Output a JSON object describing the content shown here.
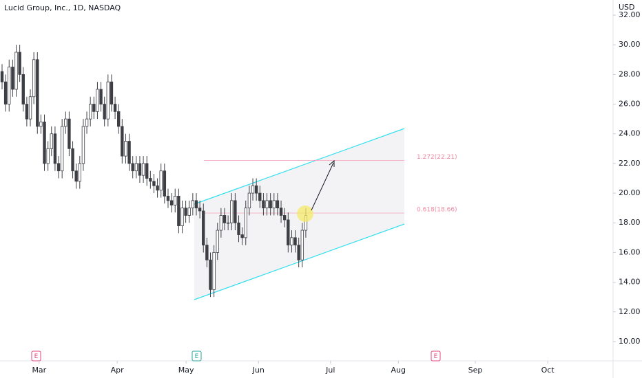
{
  "chart_data": {
    "type": "candlestick",
    "title": "Lucid Group, Inc., 1D, NASDAQ",
    "currency": "USD",
    "open": [
      28.2,
      27.5,
      26,
      28.5,
      27,
      29.5,
      28,
      26,
      25,
      26.5,
      29,
      24.5,
      24.8,
      22,
      23,
      24,
      22,
      21.5,
      24.5,
      25,
      23,
      21.5,
      20.8,
      22,
      24.5,
      25,
      26,
      25.5,
      27,
      26,
      25,
      27.5,
      26,
      25.5,
      24.5,
      22.5,
      23.5,
      22,
      21.5,
      22,
      21.2,
      22,
      21,
      20.8,
      20.5,
      20.2,
      21.5,
      19.8,
      19.5,
      19.2,
      19.8,
      17.8,
      19,
      18.5,
      19,
      19.5,
      19,
      18.8,
      16.5,
      15.5,
      13.5,
      16,
      17.5,
      18.5,
      18,
      18,
      19.5,
      18,
      17.2,
      17,
      19,
      20,
      20.5,
      20,
      19.5,
      19,
      19.5,
      19,
      19.5,
      19,
      18.5,
      18.2,
      16.5,
      17,
      16.5,
      15.5,
      17.5
    ],
    "high": [
      28.7,
      28,
      29,
      29,
      30,
      30,
      28.5,
      26.5,
      27,
      29.5,
      29.5,
      25.3,
      25.3,
      23.5,
      24.5,
      24.5,
      22.5,
      25,
      25.5,
      25.5,
      23.5,
      22,
      22.5,
      25,
      25.5,
      26.5,
      26.5,
      27.5,
      27.5,
      26.5,
      28,
      28,
      26.5,
      26,
      25,
      24,
      24,
      22.5,
      22.5,
      22.5,
      22.5,
      22.5,
      21.5,
      21.3,
      21,
      22,
      22,
      20.3,
      20,
      20.3,
      20.3,
      19.5,
      19.5,
      19.5,
      20,
      20,
      19.5,
      19.3,
      17,
      16,
      16.5,
      18,
      19,
      19,
      18.5,
      20,
      20,
      18.5,
      17.7,
      19.5,
      20.5,
      21,
      21,
      20.5,
      20,
      20,
      20,
      20,
      20,
      19.5,
      19,
      18.7,
      17.5,
      17.5,
      17,
      18,
      19
    ],
    "low": [
      27,
      25.5,
      25.5,
      26.5,
      26.5,
      27.5,
      25.5,
      24.5,
      24.5,
      26,
      24,
      24,
      21.5,
      21.5,
      22.5,
      21.5,
      21,
      21,
      24,
      22.5,
      21,
      20.3,
      20.3,
      21.5,
      24,
      24.5,
      25,
      25,
      25.5,
      24.5,
      24.5,
      25.5,
      25,
      24,
      22,
      22,
      21.5,
      21,
      21,
      20.7,
      20.7,
      20.5,
      20.3,
      20,
      19.7,
      19.7,
      19.3,
      19,
      18.7,
      18.7,
      17.3,
      17.3,
      18,
      18,
      18.5,
      18.5,
      18.3,
      16,
      15,
      13,
      13,
      15.5,
      17,
      17.5,
      17.5,
      17.5,
      17.5,
      16.7,
      16.5,
      16.5,
      18.5,
      19.5,
      19.5,
      19,
      18.5,
      18.5,
      18.5,
      18.5,
      18.5,
      18,
      17.7,
      16,
      16,
      16,
      15,
      15,
      17
    ],
    "close": [
      27.5,
      26,
      28.5,
      27,
      29.5,
      28,
      26,
      25,
      26.5,
      29,
      24.5,
      24.8,
      22,
      23,
      24,
      22,
      21.5,
      24.5,
      25,
      23,
      21.5,
      20.8,
      22,
      24.5,
      25,
      26,
      25.5,
      27,
      26,
      25,
      27.5,
      26,
      25.5,
      24.5,
      22.5,
      23.5,
      22,
      21.5,
      22,
      21.2,
      22,
      21,
      20.8,
      20.5,
      20.2,
      21.5,
      19.8,
      19.5,
      19.2,
      19.8,
      17.8,
      19,
      18.5,
      19,
      19.5,
      19,
      18.8,
      16.5,
      15.5,
      13.5,
      16,
      17.5,
      18.5,
      18,
      18,
      19.5,
      18,
      17.2,
      17,
      19,
      20,
      20.5,
      20,
      19.5,
      19,
      19.5,
      19,
      19.5,
      19,
      18.5,
      18.2,
      16.5,
      17,
      16.5,
      15.5,
      17.5,
      18.5
    ],
    "xlim": [
      0,
      173
    ],
    "xticks": [
      {
        "value": 10.5,
        "label": "Mar"
      },
      {
        "value": 32.6,
        "label": "Apr"
      },
      {
        "value": 52.1,
        "label": "May"
      },
      {
        "value": 72.6,
        "label": "Jun"
      },
      {
        "value": 93,
        "label": "Jul"
      },
      {
        "value": 112.2,
        "label": "Aug"
      },
      {
        "value": 134,
        "label": "Sep"
      },
      {
        "value": 154.5,
        "label": "Oct"
      }
    ],
    "ylim": [
      8.7,
      33.02
    ],
    "yticks": [
      {
        "value": 10,
        "label": "10.00"
      },
      {
        "value": 12,
        "label": "12.00"
      },
      {
        "value": 14,
        "label": "14.00"
      },
      {
        "value": 16,
        "label": "16.00"
      },
      {
        "value": 18,
        "label": "18.00"
      },
      {
        "value": 20,
        "label": "20.00"
      },
      {
        "value": 22,
        "label": "22.00"
      },
      {
        "value": 24,
        "label": "24.00"
      },
      {
        "value": 26,
        "label": "26.00"
      },
      {
        "value": 28,
        "label": "28.00"
      },
      {
        "value": 30,
        "label": "30.00"
      },
      {
        "value": 32,
        "label": "32.00"
      }
    ],
    "fib_levels": [
      {
        "label": "1.272(22.21)",
        "value": 22.21
      },
      {
        "label": "0.618(18.66)",
        "value": 18.66
      }
    ],
    "earnings_markers": [
      "E",
      "E",
      "E"
    ],
    "up_color": "#ffffff",
    "down_color": "#3d3f45",
    "wick_color": "#3d3f45"
  }
}
